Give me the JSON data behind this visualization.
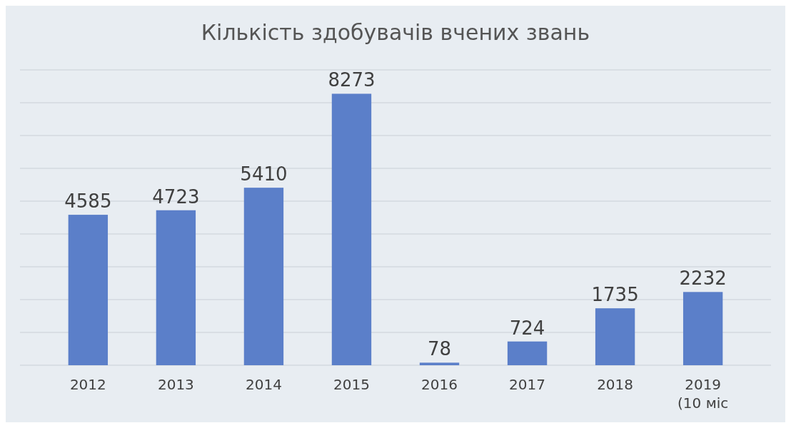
{
  "chart_data": {
    "type": "bar",
    "title": "Кількість здобувачів вчених звань",
    "categories": [
      "2012",
      "2013",
      "2014",
      "2015",
      "2016",
      "2017",
      "2018",
      "2019 (10 міс"
    ],
    "values": [
      4585,
      4723,
      5410,
      8273,
      78,
      724,
      1735,
      2232
    ],
    "color": "#5b7fc9",
    "ylim": [
      0,
      9000
    ],
    "yticks": [
      {
        "value": 0,
        "label": null
      },
      {
        "value": 1000,
        "label": null
      },
      {
        "value": 2000,
        "label": null
      },
      {
        "value": 3000,
        "label": null
      },
      {
        "value": 4000,
        "label": null
      },
      {
        "value": 5000,
        "label": null
      },
      {
        "value": 6000,
        "label": null
      },
      {
        "value": 7000,
        "label": null
      },
      {
        "value": 8000,
        "label": null
      },
      {
        "value": 9000,
        "label": null
      }
    ],
    "tick_labels": "x",
    "grid": "y",
    "data_labels": true
  }
}
